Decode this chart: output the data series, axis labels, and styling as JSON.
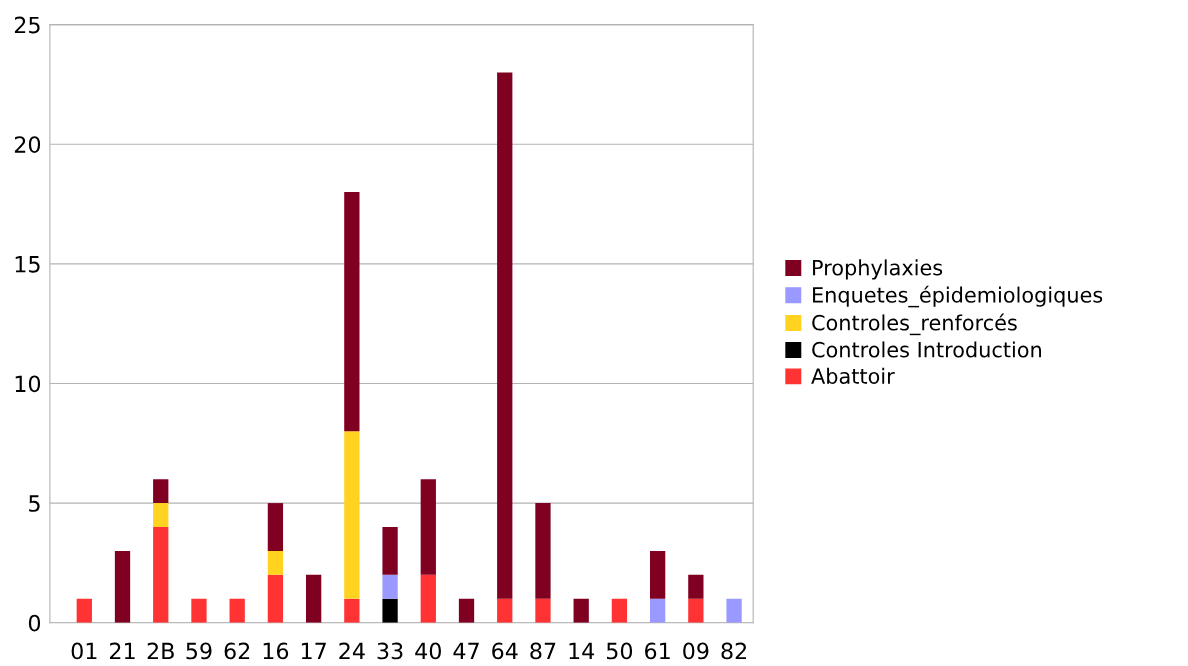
{
  "chart_data": {
    "type": "bar",
    "stacked": true,
    "categories": [
      "01",
      "21",
      "2B",
      "59",
      "62",
      "16",
      "17",
      "24",
      "33",
      "40",
      "47",
      "64",
      "87",
      "14",
      "50",
      "61",
      "09",
      "82"
    ],
    "series": [
      {
        "name": "Abattoir",
        "color": "#ff3333",
        "values": [
          1,
          0,
          4,
          1,
          1,
          2,
          0,
          1,
          0,
          2,
          0,
          1,
          1,
          0,
          1,
          0,
          1,
          0
        ]
      },
      {
        "name": "Controles Introduction",
        "color": "#000000",
        "values": [
          0,
          0,
          0,
          0,
          0,
          0,
          0,
          0,
          1,
          0,
          0,
          0,
          0,
          0,
          0,
          0,
          0,
          0
        ]
      },
      {
        "name": "Controles_renforcés",
        "color": "#ffd320",
        "values": [
          0,
          0,
          1,
          0,
          0,
          1,
          0,
          7,
          0,
          0,
          0,
          0,
          0,
          0,
          0,
          0,
          0,
          0
        ]
      },
      {
        "name": "Enquetes_épidemiologiques",
        "color": "#9999ff",
        "values": [
          0,
          0,
          0,
          0,
          0,
          0,
          0,
          0,
          1,
          0,
          0,
          0,
          0,
          0,
          0,
          1,
          0,
          1
        ]
      },
      {
        "name": "Prophylaxies",
        "color": "#7f0021",
        "values": [
          0,
          3,
          1,
          0,
          0,
          2,
          2,
          10,
          2,
          4,
          1,
          22,
          4,
          1,
          0,
          2,
          1,
          0
        ]
      }
    ],
    "ylim": [
      0,
      25
    ],
    "yticks": [
      0,
      5,
      10,
      15,
      20,
      25
    ],
    "grid": "y",
    "legend": "right"
  }
}
